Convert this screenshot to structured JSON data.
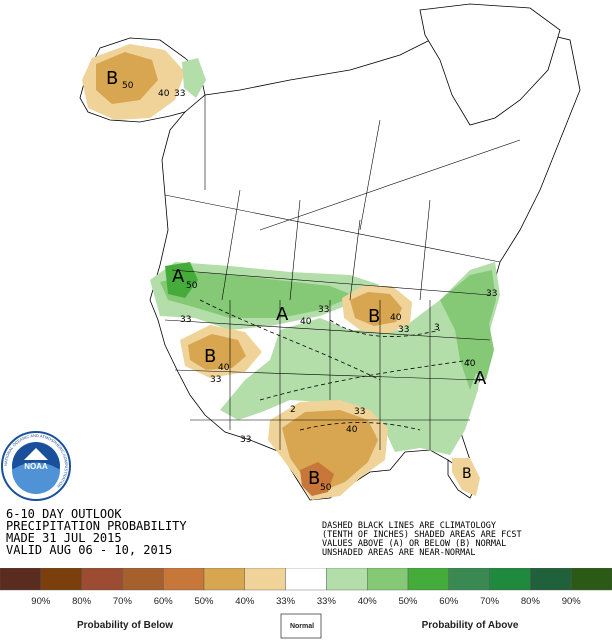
{
  "title_lines": [
    "6-10 DAY OUTLOOK",
    "PRECIPITATION PROBABILITY",
    "MADE  31 JUL 2015",
    "VALID  AUG 06 - 10, 2015"
  ],
  "note_lines": [
    "DASHED BLACK LINES ARE CLIMATOLOGY",
    "(TENTH OF INCHES) SHADED AREAS ARE FCST",
    "VALUES ABOVE (A) OR BELOW (B) NORMAL",
    "UNSHADED AREAS ARE NEAR-NORMAL"
  ],
  "logo": {
    "text": "NOAA",
    "ring_text": "NATIONAL OCEANIC AND ATMOSPHERIC ADMINISTRATION"
  },
  "map_labels": {
    "ak_b": "B",
    "ak_50": "50",
    "ak_40": "40",
    "ak_33": "33",
    "nw_a": "A",
    "nw_50": "50",
    "nw_33": "33",
    "np_a": "A",
    "np_40": "40",
    "np_33": "33",
    "gb_b": "B",
    "gb_40": "40",
    "gb_33": "33",
    "gl_b": "B",
    "gl_40": "40",
    "gl_33": "33",
    "ne_a": "A",
    "ne_33": "33",
    "ne_40": "40",
    "tx_b": "B",
    "tx_50": "50",
    "tx_40": "40",
    "tx_33": "33",
    "sw_33": "33",
    "fl_b": "B",
    "c_2": "2",
    "c_3": "3"
  },
  "legend": {
    "colors": [
      "#5a2b1f",
      "#7b3f0e",
      "#9c4c32",
      "#a5602d",
      "#c8773a",
      "#d8a651",
      "#efd398",
      "#ffffff",
      "#b3deaa",
      "#85c977",
      "#45ac3b",
      "#3a8852",
      "#1f8a3d",
      "#20603a",
      "#2b5a16"
    ],
    "labels": [
      "90%",
      "80%",
      "70%",
      "60%",
      "50%",
      "40%",
      "33%",
      "33%",
      "40%",
      "50%",
      "60%",
      "70%",
      "80%",
      "90%"
    ],
    "below_caption": "Probability of Below",
    "normal_caption": "Normal",
    "above_caption": "Probability of Above"
  }
}
